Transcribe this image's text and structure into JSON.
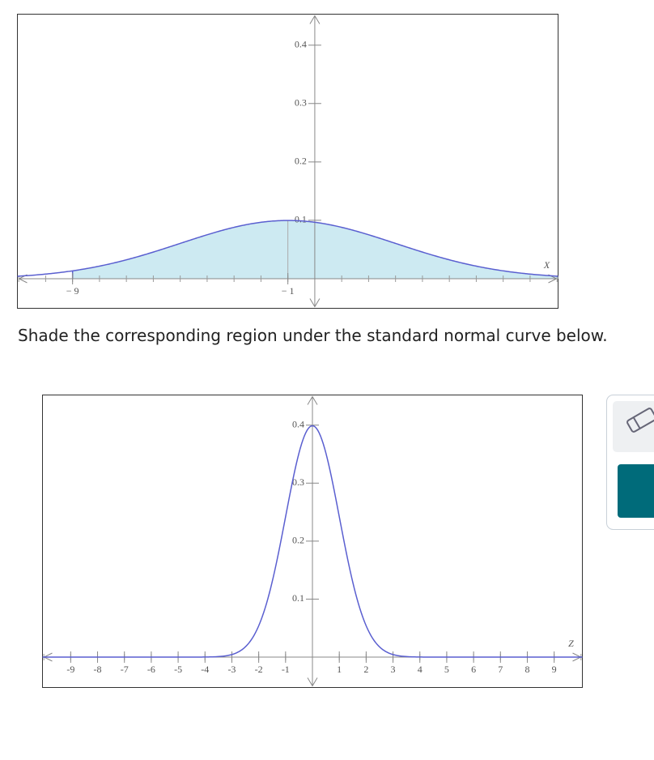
{
  "instruction": "Shade the corresponding region under the standard normal curve below.",
  "plots": [
    {
      "xlim": [
        -11.05,
        9.04
      ],
      "ylim": [
        0,
        0.453
      ],
      "yticks": [
        0.1,
        0.2,
        0.3,
        0.4
      ],
      "xticks": [
        {
          "value": -9,
          "label": "− 9"
        },
        {
          "value": -1,
          "label": "− 1"
        }
      ],
      "axis_label": "X",
      "mean": -1,
      "sd": 4,
      "shade_from": -9
    },
    {
      "xlim": [
        -10.05,
        10.05
      ],
      "ylim": [
        0,
        0.452
      ],
      "yticks": [
        0.1,
        0.2,
        0.3,
        0.4
      ],
      "xticks": [
        -9,
        -8,
        -7,
        -6,
        -5,
        -4,
        -3,
        -2,
        -1,
        1,
        2,
        3,
        4,
        5,
        6,
        7,
        8,
        9
      ],
      "axis_label": "Z",
      "mean": 0,
      "sd": 1
    }
  ]
}
